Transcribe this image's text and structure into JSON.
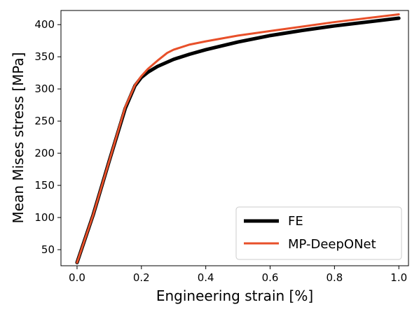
{
  "chart_data": {
    "type": "line",
    "xlabel": "Engineering strain [%]",
    "ylabel": "Mean Mises stress [MPa]",
    "xlim": [
      -0.05,
      1.03
    ],
    "ylim": [
      25,
      422
    ],
    "xticks": [
      0.0,
      0.2,
      0.4,
      0.6,
      0.8,
      1.0
    ],
    "xtick_labels": [
      "0.0",
      "0.2",
      "0.4",
      "0.6",
      "0.8",
      "1.0"
    ],
    "yticks": [
      50,
      100,
      150,
      200,
      250,
      300,
      350,
      400
    ],
    "ytick_labels": [
      "50",
      "100",
      "150",
      "200",
      "250",
      "300",
      "350",
      "400"
    ],
    "grid": false,
    "legend_position": "bottom-right",
    "series": [
      {
        "name": "FE",
        "color": "#000000",
        "x": [
          0.0,
          0.05,
          0.1,
          0.15,
          0.18,
          0.2,
          0.22,
          0.25,
          0.3,
          0.35,
          0.4,
          0.5,
          0.6,
          0.7,
          0.8,
          0.9,
          1.0
        ],
        "y": [
          30,
          104,
          188,
          270,
          305,
          318,
          326,
          335,
          346,
          354,
          361,
          373,
          383,
          391,
          398,
          404,
          410
        ]
      },
      {
        "name": "MP-DeepONet",
        "color": "#e8502a",
        "x": [
          0.0,
          0.05,
          0.1,
          0.15,
          0.18,
          0.2,
          0.22,
          0.25,
          0.28,
          0.3,
          0.35,
          0.4,
          0.5,
          0.6,
          0.7,
          0.8,
          0.9,
          1.0
        ],
        "y": [
          30,
          104,
          188,
          272,
          306,
          320,
          331,
          344,
          356,
          361,
          369,
          374,
          383,
          390,
          397,
          404,
          410,
          416
        ]
      }
    ]
  }
}
